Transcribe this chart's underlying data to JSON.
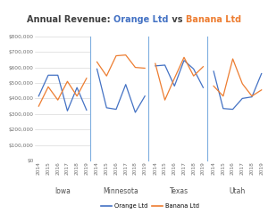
{
  "title_parts": [
    {
      "text": "Annual Revenue: ",
      "color": "#404040"
    },
    {
      "text": "Orange Ltd",
      "color": "#4472C4"
    },
    {
      "text": " vs ",
      "color": "#404040"
    },
    {
      "text": "Banana Ltd",
      "color": "#ED7D31"
    }
  ],
  "years": [
    2014,
    2015,
    2016,
    2017,
    2018,
    2019
  ],
  "panels": [
    "Iowa",
    "Minnesota",
    "Texas",
    "Utah"
  ],
  "orange_data": {
    "Iowa": [
      415000,
      550000,
      550000,
      320000,
      470000,
      325000
    ],
    "Minnesota": [
      590000,
      340000,
      330000,
      490000,
      310000,
      415000
    ],
    "Texas": [
      610000,
      615000,
      480000,
      645000,
      590000,
      470000
    ],
    "Utah": [
      575000,
      335000,
      330000,
      400000,
      410000,
      560000
    ]
  },
  "banana_data": {
    "Iowa": [
      350000,
      475000,
      390000,
      510000,
      415000,
      530000
    ],
    "Minnesota": [
      635000,
      545000,
      675000,
      680000,
      600000,
      595000
    ],
    "Texas": [
      625000,
      390000,
      530000,
      665000,
      545000,
      605000
    ],
    "Utah": [
      480000,
      415000,
      655000,
      495000,
      415000,
      455000
    ]
  },
  "ylim": [
    0,
    800000
  ],
  "yticks": [
    0,
    100000,
    200000,
    300000,
    400000,
    500000,
    600000,
    700000,
    800000
  ],
  "ytick_labels": [
    "$0",
    "$100,000",
    "$200,000",
    "$300,000",
    "$400,000",
    "$500,000",
    "$600,000",
    "$700,000",
    "$800,000"
  ],
  "orange_color": "#4472C4",
  "banana_color": "#ED7D31",
  "bg_color": "#FFFFFF",
  "grid_color": "#D0D0D0",
  "divider_color": "#7FAFE0",
  "title_fontsize": 7.0,
  "tick_fontsize": 4.2,
  "xlabel_fontsize": 5.5,
  "legend_fontsize": 4.8
}
